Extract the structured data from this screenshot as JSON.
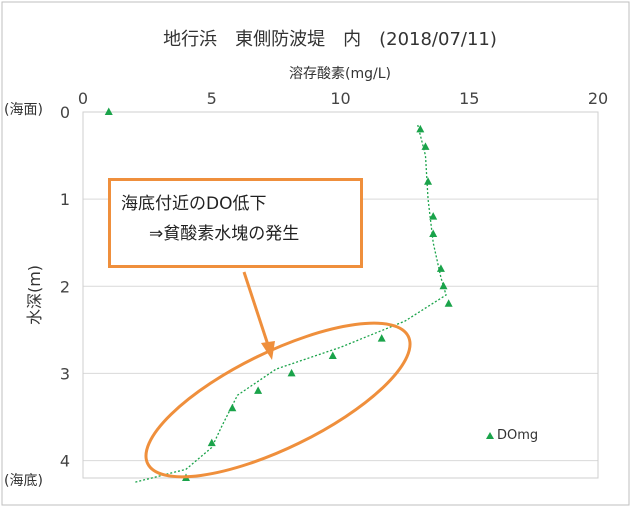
{
  "chart_data": {
    "type": "scatter",
    "title": "地行浜　東側防波堤　内　(2018/07/11)",
    "xlabel": "溶存酸素(mg/L)",
    "ylabel": "水深(m)",
    "xlim": [
      0,
      20
    ],
    "ylim": [
      0,
      4.2
    ],
    "x_ticks": [
      "0",
      "5",
      "10",
      "15",
      "20"
    ],
    "y_ticks": [
      "0",
      "1",
      "2",
      "3",
      "4"
    ],
    "y_axis_inverted": true,
    "x_axis_position": "top",
    "grid": "horizontal",
    "legend": {
      "position": "bottom-right",
      "entries": [
        "DOmg"
      ]
    },
    "series": [
      {
        "name": "DOmg",
        "marker": "triangle",
        "color": "#1aa34a",
        "points": [
          {
            "x": 1.0,
            "y": 0.0
          },
          {
            "x": 13.1,
            "y": 0.2
          },
          {
            "x": 13.3,
            "y": 0.4
          },
          {
            "x": 13.4,
            "y": 0.8
          },
          {
            "x": 13.6,
            "y": 1.2
          },
          {
            "x": 13.6,
            "y": 1.4
          },
          {
            "x": 13.9,
            "y": 1.8
          },
          {
            "x": 14.0,
            "y": 2.0
          },
          {
            "x": 14.2,
            "y": 2.2
          },
          {
            "x": 11.6,
            "y": 2.6
          },
          {
            "x": 9.7,
            "y": 2.8
          },
          {
            "x": 8.1,
            "y": 3.0
          },
          {
            "x": 6.8,
            "y": 3.2
          },
          {
            "x": 5.8,
            "y": 3.4
          },
          {
            "x": 5.0,
            "y": 3.8
          },
          {
            "x": 4.0,
            "y": 4.2
          }
        ]
      }
    ],
    "trend_line": {
      "style": "dotted",
      "color": "#1aa34a",
      "points": [
        {
          "x": 13.0,
          "y": 0.15
        },
        {
          "x": 13.3,
          "y": 0.5
        },
        {
          "x": 13.4,
          "y": 1.0
        },
        {
          "x": 13.6,
          "y": 1.5
        },
        {
          "x": 13.9,
          "y": 1.9
        },
        {
          "x": 14.1,
          "y": 2.1
        },
        {
          "x": 12.5,
          "y": 2.4
        },
        {
          "x": 10.0,
          "y": 2.7
        },
        {
          "x": 7.5,
          "y": 2.95
        },
        {
          "x": 6.0,
          "y": 3.25
        },
        {
          "x": 5.4,
          "y": 3.6
        },
        {
          "x": 5.0,
          "y": 3.85
        },
        {
          "x": 4.0,
          "y": 4.1
        },
        {
          "x": 2.0,
          "y": 4.25
        }
      ]
    },
    "annotations": {
      "callout_line1": "海底付近のDO低下",
      "callout_line2": "⇒貧酸素水塊の発生",
      "surface_label": "(海面)",
      "bottom_label": "(海底)",
      "highlight_color": "#ef8f3c"
    }
  }
}
